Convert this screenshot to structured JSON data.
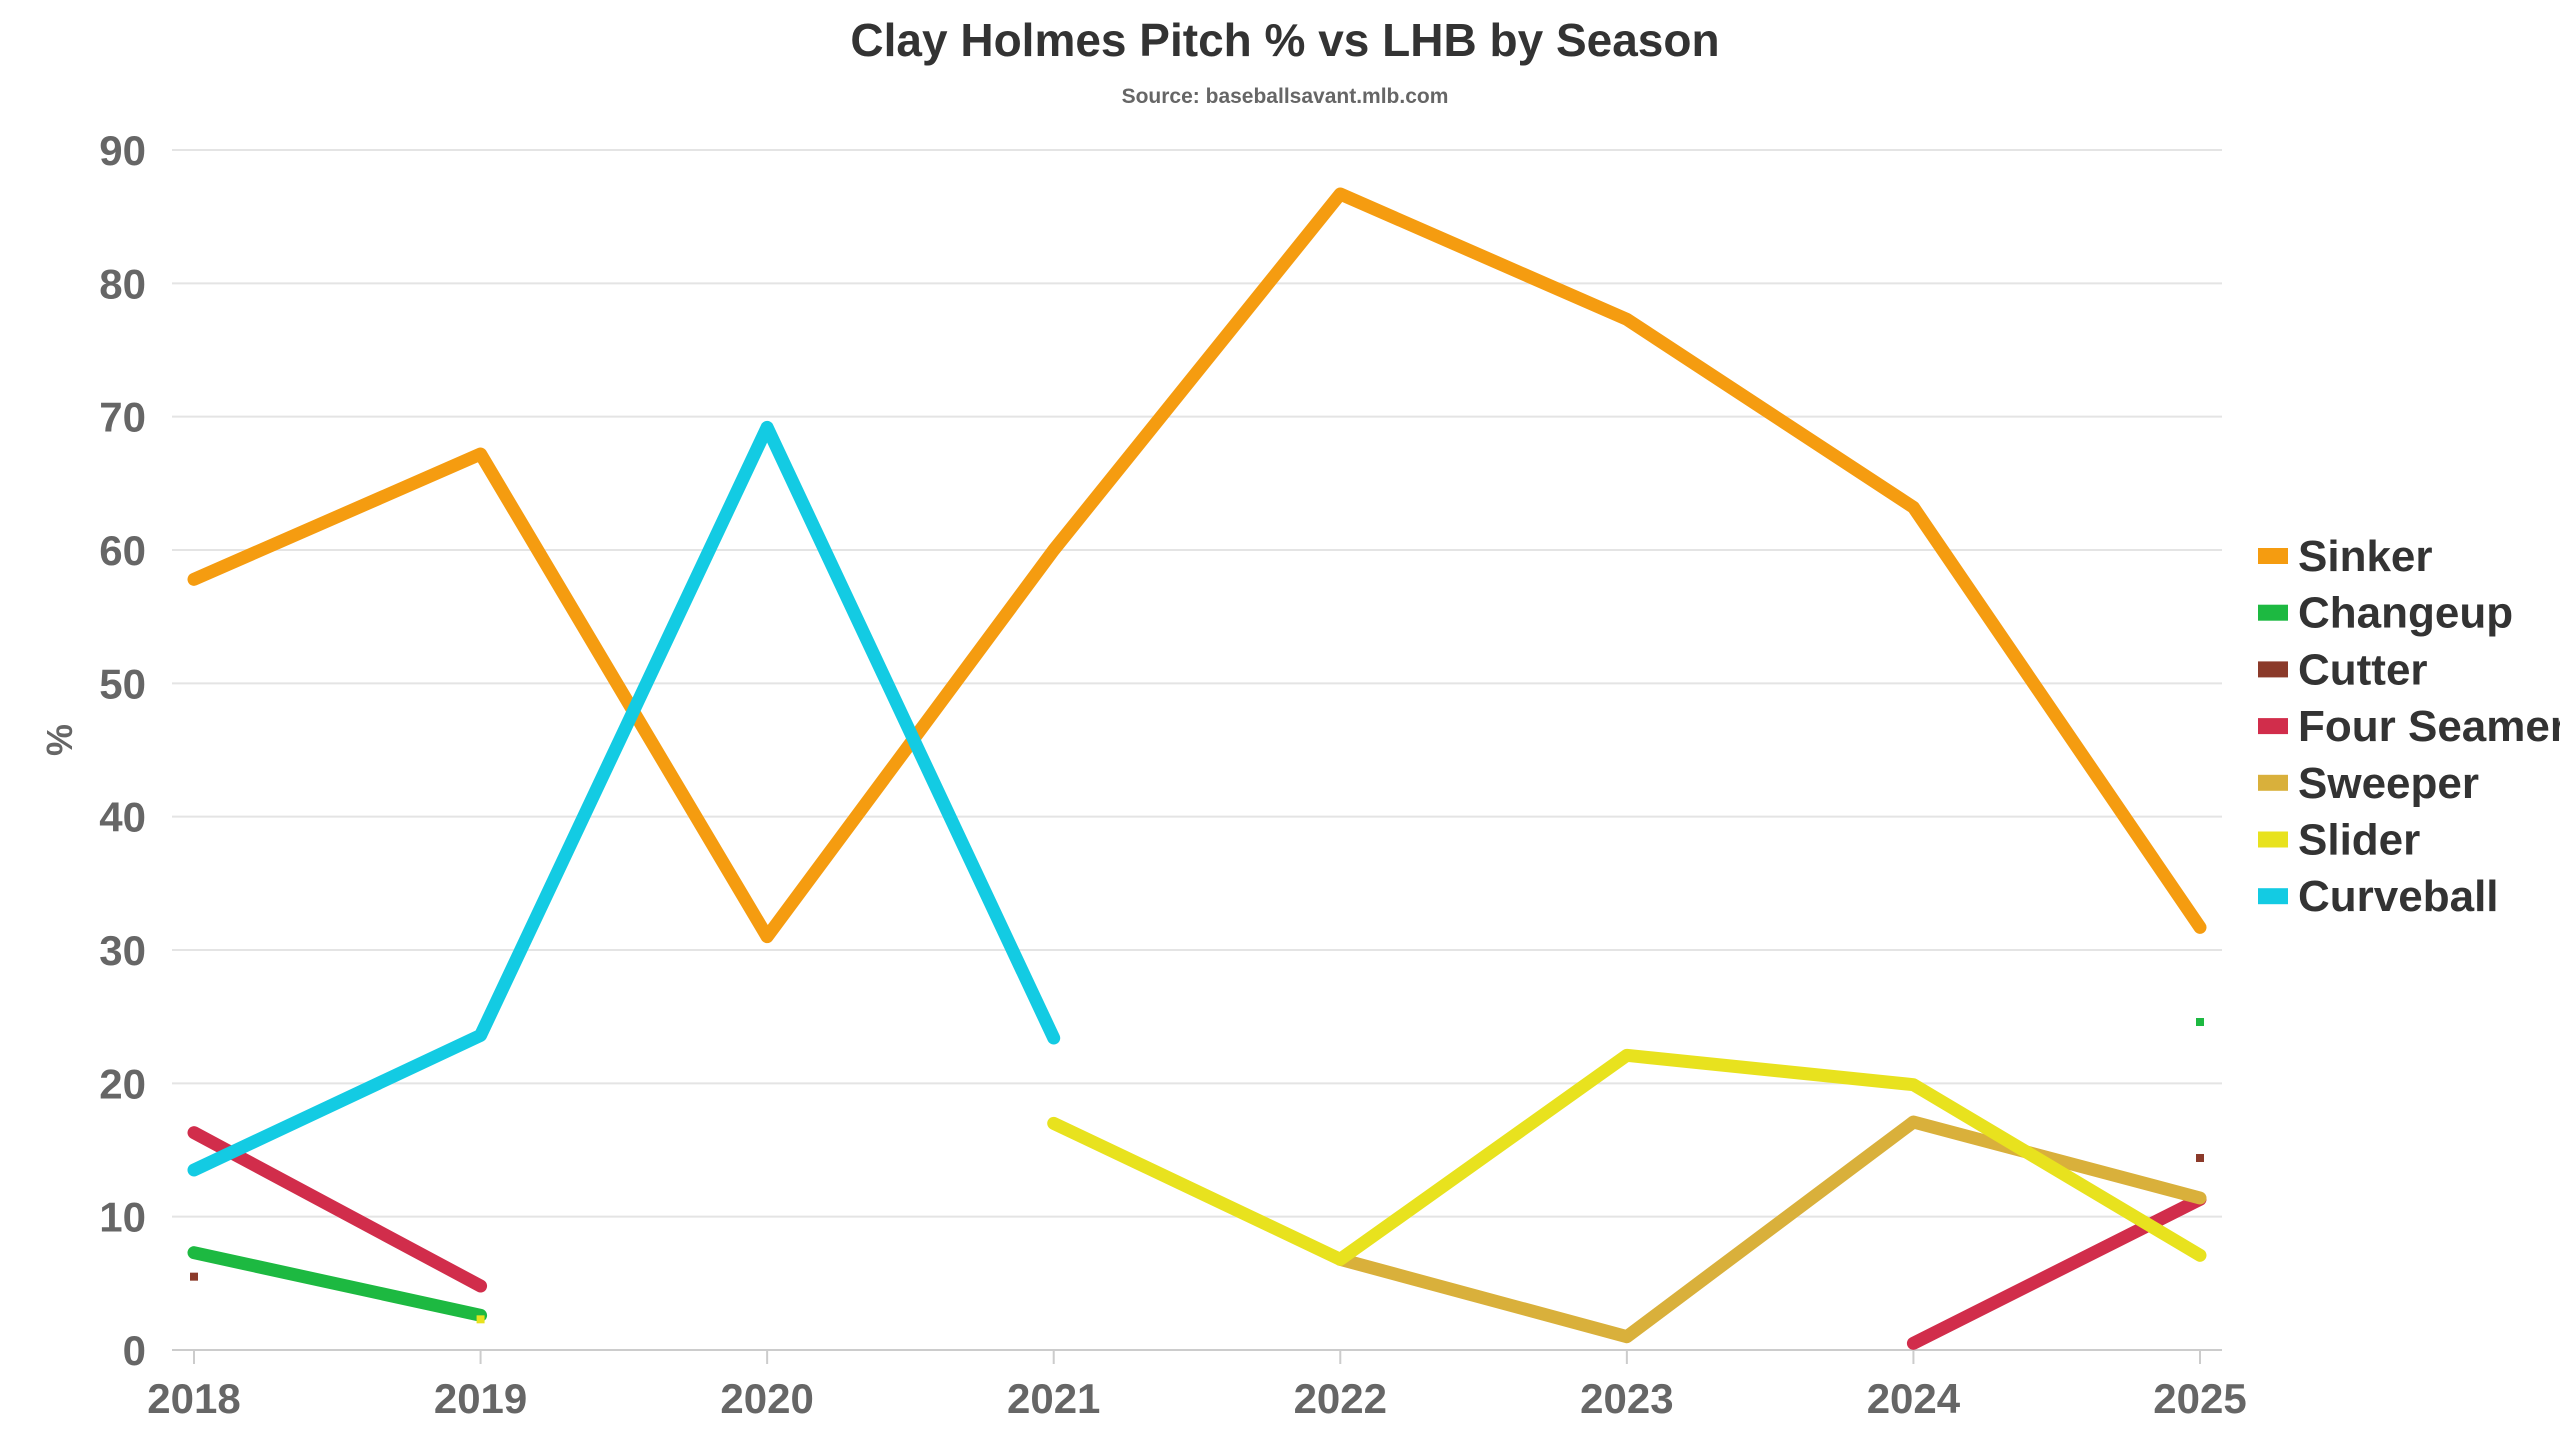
{
  "chart_data": {
    "type": "line",
    "title": "Clay Holmes Pitch % vs LHB by Season",
    "subtitle": "Source: baseballsavant.mlb.com",
    "xlabel": "",
    "ylabel": "%",
    "ylim": [
      0,
      90
    ],
    "yticks": [
      "0",
      "10",
      "20",
      "30",
      "40",
      "50",
      "60",
      "70",
      "80",
      "90"
    ],
    "categories": [
      "2018",
      "2019",
      "2020",
      "2021",
      "2022",
      "2023",
      "2024",
      "2025"
    ],
    "grid": true,
    "legend_position": "right",
    "series": [
      {
        "name": "Sinker",
        "color": "#f59c10",
        "values": [
          57.8,
          67.2,
          31.0,
          60.0,
          86.7,
          77.3,
          63.2,
          31.7
        ]
      },
      {
        "name": "Changeup",
        "color": "#1db941",
        "values": [
          7.3,
          2.6,
          null,
          null,
          null,
          null,
          null,
          24.6
        ]
      },
      {
        "name": "Cutter",
        "color": "#8b3a2a",
        "values": [
          5.5,
          null,
          null,
          null,
          null,
          null,
          null,
          14.4
        ]
      },
      {
        "name": "Four Seamer",
        "color": "#d12d4b",
        "values": [
          16.3,
          4.8,
          null,
          null,
          null,
          null,
          0.5,
          11.3
        ]
      },
      {
        "name": "Sweeper",
        "color": "#d9b03b",
        "values": [
          null,
          null,
          null,
          null,
          6.8,
          1.0,
          17.1,
          11.4
        ]
      },
      {
        "name": "Slider",
        "color": "#e8e21e",
        "values": [
          null,
          2.3,
          null,
          17.0,
          6.8,
          22.1,
          19.9,
          7.1
        ]
      },
      {
        "name": "Curveball",
        "color": "#13cbe3",
        "values": [
          13.5,
          23.6,
          69.2,
          23.4,
          null,
          null,
          null,
          null
        ]
      }
    ]
  }
}
